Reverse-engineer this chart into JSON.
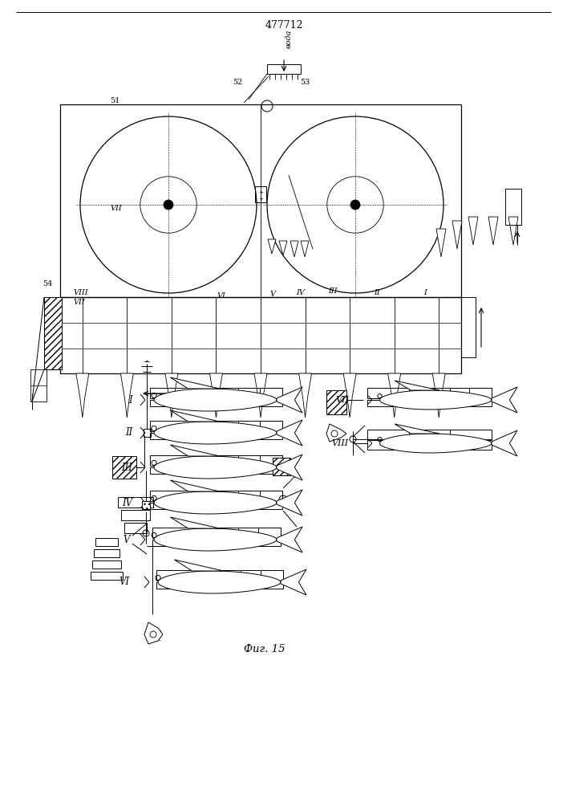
{
  "title": "477712",
  "fig_label": "Фиг. 15",
  "voda_label": "вода",
  "bg_color": "#ffffff",
  "line_color": "#000000",
  "title_fontsize": 9,
  "fig_label_fontsize": 10
}
